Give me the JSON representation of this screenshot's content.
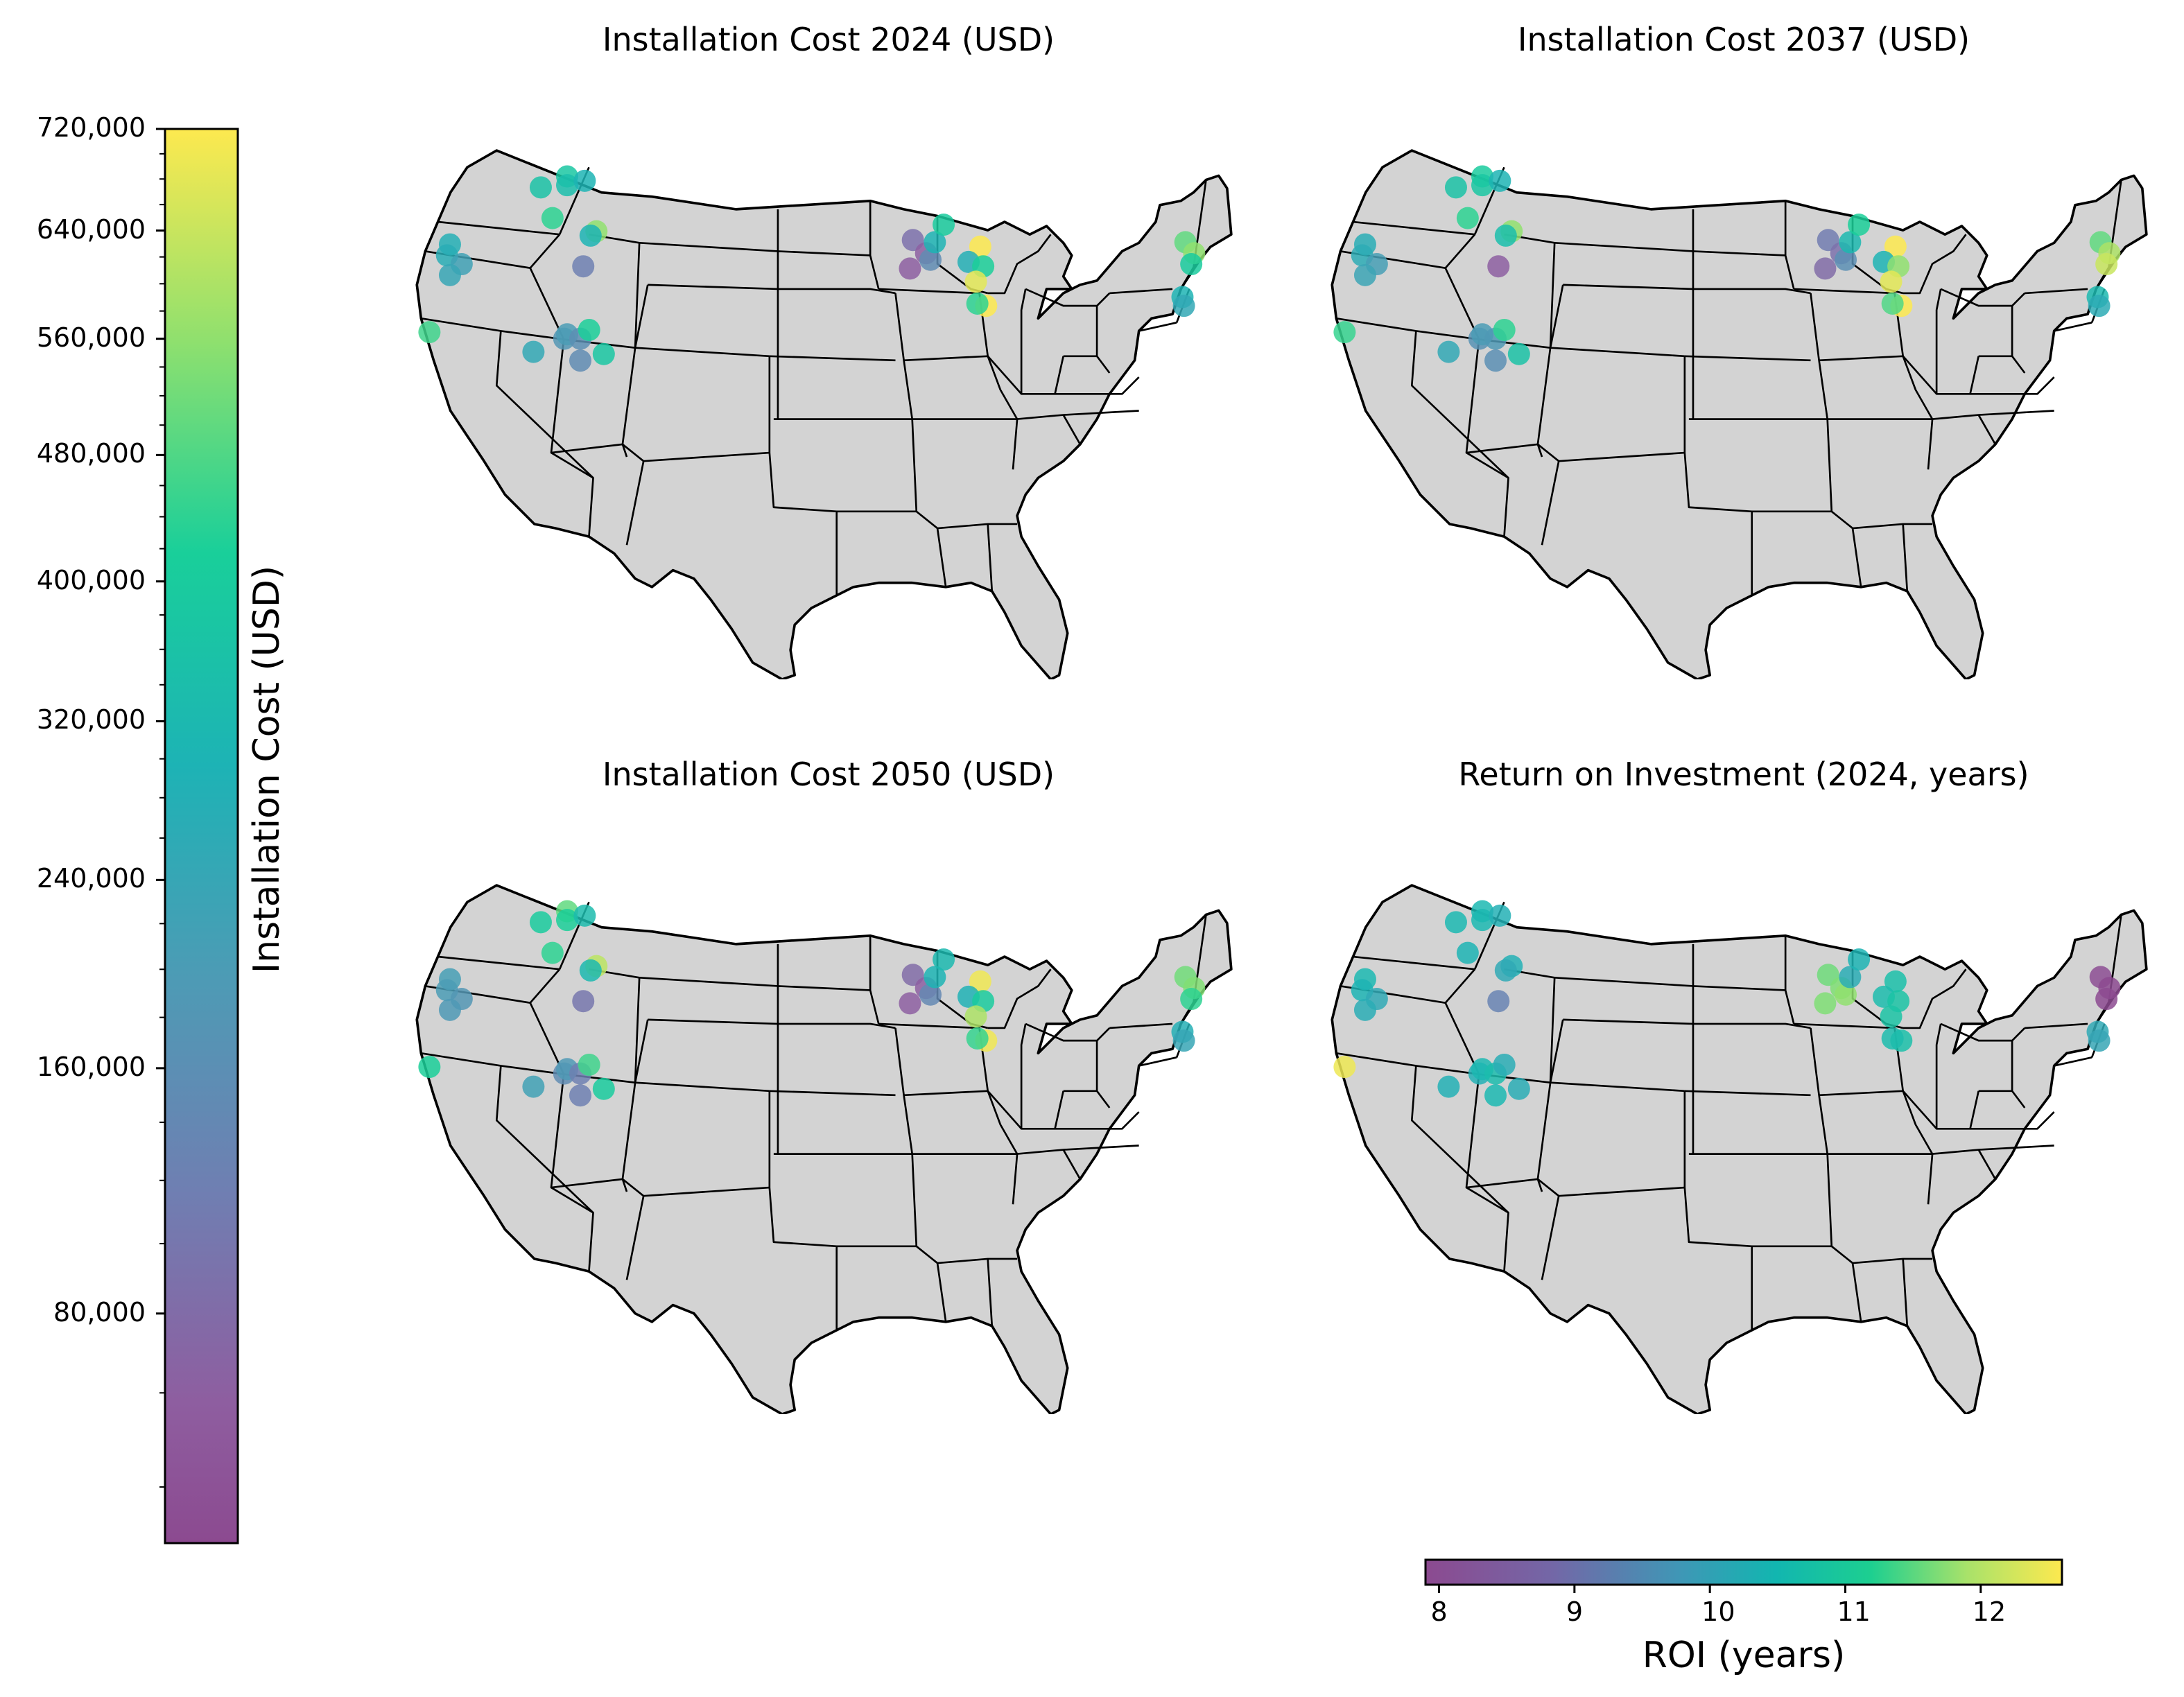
{
  "figure": {
    "panels": [
      {
        "id": "cost2024",
        "title": "Installation Cost 2024 (USD)"
      },
      {
        "id": "cost2037",
        "title": "Installation Cost 2037 (USD)"
      },
      {
        "id": "cost2050",
        "title": "Installation Cost 2050 (USD)"
      },
      {
        "id": "roi2024",
        "title": "Return on Investment (2024, years)"
      }
    ],
    "cost_colorbar": {
      "label": "Installation Cost (USD)",
      "ticks": [
        "720,000",
        "640,000",
        "560,000",
        "480,000",
        "400,000",
        "320,000",
        "240,000",
        "160,000",
        "80,000"
      ],
      "colormap": "viridis"
    },
    "roi_colorbar": {
      "label": "ROI (years)",
      "ticks": [
        "8",
        "9",
        "10",
        "11",
        "12"
      ],
      "colormap": "viridis"
    },
    "colors": {
      "land": "#d3d3d3",
      "border": "#000000",
      "viridis_low": "#440154",
      "viridis_mid": "#21918c",
      "viridis_high": "#fde725"
    }
  },
  "chart_data": {
    "type": "scatter",
    "description_units": "lon/lat site locations colored by value",
    "sites": [
      {
        "lon": -121.0,
        "lat": 45.6,
        "cost2024": 280000,
        "cost2037": 270000,
        "cost2050": 210000,
        "roi": 10.6
      },
      {
        "lon": -121.2,
        "lat": 45.1,
        "cost2024": 270000,
        "cost2037": 260000,
        "cost2050": 200000,
        "roi": 10.5
      },
      {
        "lon": -120.2,
        "lat": 44.7,
        "cost2024": 220000,
        "cost2037": 210000,
        "cost2050": 180000,
        "roi": 10.2
      },
      {
        "lon": -121.0,
        "lat": 44.2,
        "cost2024": 240000,
        "cost2037": 230000,
        "cost2050": 190000,
        "roi": 10.3
      },
      {
        "lon": -122.4,
        "lat": 41.6,
        "cost2024": 460000,
        "cost2037": 450000,
        "cost2050": 420000,
        "roi": 12.5
      },
      {
        "lon": -114.8,
        "lat": 48.2,
        "cost2024": 360000,
        "cost2037": 360000,
        "cost2050": 400000,
        "roi": 10.6
      },
      {
        "lon": -113.0,
        "lat": 48.7,
        "cost2024": 380000,
        "cost2037": 400000,
        "cost2050": 500000,
        "roi": 10.6
      },
      {
        "lon": -113.0,
        "lat": 48.3,
        "cost2024": 340000,
        "cost2037": 380000,
        "cost2050": 420000,
        "roi": 10.6
      },
      {
        "lon": -111.8,
        "lat": 48.5,
        "cost2024": 300000,
        "cost2037": 300000,
        "cost2050": 330000,
        "roi": 10.4
      },
      {
        "lon": -114.0,
        "lat": 46.8,
        "cost2024": 440000,
        "cost2037": 440000,
        "cost2050": 440000,
        "roi": 10.5
      },
      {
        "lon": -111.0,
        "lat": 46.2,
        "cost2024": 560000,
        "cost2037": 560000,
        "cost2050": 620000,
        "roi": 10.4
      },
      {
        "lon": -111.4,
        "lat": 46.0,
        "cost2024": 300000,
        "cost2037": 340000,
        "cost2050": 320000,
        "roi": 10.2
      },
      {
        "lon": -111.9,
        "lat": 44.6,
        "cost2024": 120000,
        "cost2037": 60000,
        "cost2050": 100000,
        "roi": 9.2
      },
      {
        "lon": -115.3,
        "lat": 40.7,
        "cost2024": 250000,
        "cost2037": 250000,
        "cost2050": 220000,
        "roi": 10.4
      },
      {
        "lon": -113.2,
        "lat": 41.3,
        "cost2024": 180000,
        "cost2037": 170000,
        "cost2050": 150000,
        "roi": 10.4
      },
      {
        "lon": -113.0,
        "lat": 41.5,
        "cost2024": 200000,
        "cost2037": 200000,
        "cost2050": 190000,
        "roi": 10.6
      },
      {
        "lon": -112.1,
        "lat": 41.3,
        "cost2024": 160000,
        "cost2037": 190000,
        "cost2050": 120000,
        "roi": 10.7
      },
      {
        "lon": -111.5,
        "lat": 41.7,
        "cost2024": 420000,
        "cost2037": 440000,
        "cost2050": 460000,
        "roi": 10.3
      },
      {
        "lon": -112.1,
        "lat": 40.3,
        "cost2024": 150000,
        "cost2037": 160000,
        "cost2050": 120000,
        "roi": 10.6
      },
      {
        "lon": -110.5,
        "lat": 40.6,
        "cost2024": 380000,
        "cost2037": 360000,
        "cost2050": 400000,
        "roi": 10.3
      },
      {
        "lon": -89.4,
        "lat": 45.8,
        "cost2024": 90000,
        "cost2037": 110000,
        "cost2050": 80000,
        "roi": 11.7
      },
      {
        "lon": -88.5,
        "lat": 45.2,
        "cost2024": 60000,
        "cost2037": 90000,
        "cost2050": 60000,
        "roi": 11.8
      },
      {
        "lon": -88.2,
        "lat": 44.9,
        "cost2024": 150000,
        "cost2037": 160000,
        "cost2050": 140000,
        "roi": 11.9
      },
      {
        "lon": -87.9,
        "lat": 45.7,
        "cost2024": 300000,
        "cost2037": 320000,
        "cost2050": 300000,
        "roi": 10.3
      },
      {
        "lon": -87.3,
        "lat": 46.5,
        "cost2024": 400000,
        "cost2037": 420000,
        "cost2050": 320000,
        "roi": 10.5
      },
      {
        "lon": -89.6,
        "lat": 44.5,
        "cost2024": 60000,
        "cost2037": 80000,
        "cost2050": 60000,
        "roi": 11.8
      },
      {
        "lon": -84.8,
        "lat": 45.5,
        "cost2024": 720000,
        "cost2037": 720000,
        "cost2050": 700000,
        "roi": 10.8
      },
      {
        "lon": -85.6,
        "lat": 44.8,
        "cost2024": 280000,
        "cost2037": 300000,
        "cost2050": 290000,
        "roi": 10.7
      },
      {
        "lon": -84.6,
        "lat": 44.6,
        "cost2024": 420000,
        "cost2037": 560000,
        "cost2050": 400000,
        "roi": 10.9
      },
      {
        "lon": -85.1,
        "lat": 43.9,
        "cost2024": 680000,
        "cost2037": 680000,
        "cost2050": 600000,
        "roi": 10.9
      },
      {
        "lon": -84.4,
        "lat": 42.8,
        "cost2024": 720000,
        "cost2037": 720000,
        "cost2050": 700000,
        "roi": 10.8
      },
      {
        "lon": -85.0,
        "lat": 42.9,
        "cost2024": 440000,
        "cost2037": 480000,
        "cost2050": 450000,
        "roi": 10.7
      },
      {
        "lon": -70.8,
        "lat": 45.7,
        "cost2024": 500000,
        "cost2037": 500000,
        "cost2050": 520000,
        "roi": 8.0
      },
      {
        "lon": -70.2,
        "lat": 45.2,
        "cost2024": 560000,
        "cost2037": 600000,
        "cost2050": 540000,
        "roi": 7.8
      },
      {
        "lon": -70.4,
        "lat": 44.7,
        "cost2024": 400000,
        "cost2037": 640000,
        "cost2050": 440000,
        "roi": 7.9
      },
      {
        "lon": -71.0,
        "lat": 43.2,
        "cost2024": 300000,
        "cost2037": 320000,
        "cost2050": 280000,
        "roi": 10.2
      },
      {
        "lon": -70.9,
        "lat": 42.8,
        "cost2024": 250000,
        "cost2037": 260000,
        "cost2050": 240000,
        "roi": 10.1
      }
    ],
    "cost_range": [
      30000,
      720000
    ],
    "cost_scale": "sqrt",
    "roi_range": [
      7.9,
      12.6
    ]
  }
}
